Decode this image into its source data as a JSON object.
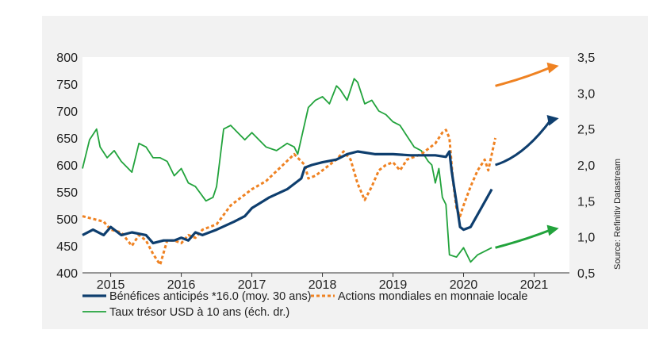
{
  "chart_data": {
    "type": "line",
    "xlim": [
      2014.6,
      2021.5
    ],
    "x_ticks": [
      {
        "label": "2015",
        "x": 2015.0
      },
      {
        "label": "2016",
        "x": 2016.0
      },
      {
        "label": "2017",
        "x": 2017.0
      },
      {
        "label": "2018",
        "x": 2018.0
      },
      {
        "label": "2019",
        "x": 2019.0
      },
      {
        "label": "2020",
        "x": 2020.0
      },
      {
        "label": "2021",
        "x": 2021.0
      }
    ],
    "y_left": {
      "lim": [
        400,
        800
      ],
      "ticks": [
        "800",
        "750",
        "700",
        "650",
        "600",
        "550",
        "500",
        "450",
        "400"
      ],
      "tick_values": [
        800,
        750,
        700,
        650,
        600,
        550,
        500,
        450,
        400
      ]
    },
    "y_right": {
      "lim": [
        0.5,
        3.5
      ],
      "ticks": [
        "3,5",
        "3,0",
        "2,5",
        "2,0",
        "1,5",
        "1,0",
        "0,5"
      ],
      "tick_values": [
        3.5,
        3.0,
        2.5,
        2.0,
        1.5,
        1.0,
        0.5
      ]
    },
    "grid": false,
    "legend_position": "bottom",
    "series": [
      {
        "name": "Bénéfices anticipés *16.0 (moy. 30 ans)",
        "color": "#0e3e6e",
        "line_style": "solid",
        "axis": "left",
        "x": [
          2014.6,
          2014.75,
          2014.9,
          2015.0,
          2015.15,
          2015.3,
          2015.5,
          2015.6,
          2015.75,
          2015.9,
          2016.0,
          2016.1,
          2016.2,
          2016.3,
          2016.5,
          2016.75,
          2016.9,
          2017.0,
          2017.25,
          2017.5,
          2017.7,
          2017.75,
          2017.85,
          2018.0,
          2018.2,
          2018.35,
          2018.5,
          2018.75,
          2019.0,
          2019.25,
          2019.5,
          2019.6,
          2019.75,
          2019.8,
          2019.83,
          2019.87,
          2019.9,
          2019.95,
          2020.0,
          2020.1,
          2020.25,
          2020.4
        ],
        "values": [
          470,
          480,
          470,
          485,
          470,
          475,
          470,
          455,
          460,
          460,
          465,
          460,
          475,
          470,
          480,
          495,
          505,
          520,
          540,
          555,
          575,
          595,
          600,
          605,
          610,
          620,
          625,
          620,
          620,
          618,
          618,
          618,
          615,
          625,
          590,
          555,
          530,
          485,
          480,
          485,
          520,
          555
        ]
      },
      {
        "name": "Actions mondiales en monnaie locale",
        "color": "#ef8222",
        "line_style": "dotted",
        "axis": "left",
        "x": [
          2014.6,
          2014.75,
          2014.9,
          2015.0,
          2015.15,
          2015.3,
          2015.4,
          2015.5,
          2015.6,
          2015.7,
          2015.8,
          2015.9,
          2016.0,
          2016.1,
          2016.2,
          2016.3,
          2016.5,
          2016.7,
          2016.9,
          2017.0,
          2017.2,
          2017.4,
          2017.6,
          2017.75,
          2017.8,
          2017.9,
          2018.0,
          2018.1,
          2018.2,
          2018.3,
          2018.4,
          2018.5,
          2018.6,
          2018.7,
          2018.8,
          2018.9,
          2019.0,
          2019.1,
          2019.2,
          2019.3,
          2019.4,
          2019.5,
          2019.6,
          2019.7,
          2019.75,
          2019.8,
          2019.85,
          2019.9,
          2019.95,
          2020.0,
          2020.1,
          2020.2,
          2020.25,
          2020.3,
          2020.35,
          2020.4,
          2020.45
        ],
        "values": [
          505,
          500,
          495,
          480,
          475,
          450,
          470,
          460,
          435,
          415,
          460,
          460,
          455,
          470,
          465,
          480,
          490,
          525,
          545,
          555,
          570,
          595,
          620,
          600,
          575,
          580,
          590,
          600,
          610,
          625,
          610,
          565,
          535,
          560,
          590,
          600,
          605,
          590,
          610,
          615,
          620,
          630,
          640,
          660,
          665,
          650,
          570,
          520,
          505,
          525,
          560,
          590,
          600,
          610,
          590,
          620,
          650
        ]
      },
      {
        "name": "Taux trésor USD à 10 ans (éch. dr.)",
        "color": "#22a33c",
        "line_style": "solid",
        "axis": "right",
        "x": [
          2014.6,
          2014.7,
          2014.8,
          2014.85,
          2014.95,
          2015.05,
          2015.15,
          2015.3,
          2015.4,
          2015.5,
          2015.6,
          2015.7,
          2015.8,
          2015.9,
          2016.0,
          2016.1,
          2016.2,
          2016.35,
          2016.45,
          2016.5,
          2016.6,
          2016.7,
          2016.8,
          2016.9,
          2017.0,
          2017.1,
          2017.2,
          2017.35,
          2017.5,
          2017.6,
          2017.65,
          2017.8,
          2017.9,
          2018.0,
          2018.1,
          2018.2,
          2018.25,
          2018.35,
          2018.45,
          2018.5,
          2018.6,
          2018.7,
          2018.8,
          2018.9,
          2019.0,
          2019.1,
          2019.2,
          2019.3,
          2019.4,
          2019.5,
          2019.55,
          2019.6,
          2019.65,
          2019.7,
          2019.75,
          2019.8,
          2019.9,
          2020.0,
          2020.1,
          2020.2,
          2020.3,
          2020.4
        ],
        "values": [
          1.95,
          2.35,
          2.5,
          2.25,
          2.1,
          2.2,
          2.05,
          1.9,
          2.3,
          2.25,
          2.1,
          2.1,
          2.05,
          1.85,
          1.95,
          1.75,
          1.7,
          1.5,
          1.55,
          1.7,
          2.5,
          2.55,
          2.45,
          2.35,
          2.45,
          2.35,
          2.25,
          2.2,
          2.3,
          2.25,
          2.15,
          2.8,
          2.9,
          2.95,
          2.85,
          3.1,
          3.05,
          2.9,
          3.2,
          3.15,
          2.85,
          2.9,
          2.75,
          2.7,
          2.6,
          2.55,
          2.4,
          2.25,
          2.2,
          2.05,
          2.0,
          1.75,
          1.95,
          1.55,
          1.45,
          0.75,
          0.72,
          0.85,
          0.65,
          0.75,
          0.8,
          0.85
        ]
      }
    ],
    "annotations": [
      {
        "type": "arrow",
        "color": "#ef8222",
        "from": [
          2020.45,
          3.1
        ],
        "to": [
          2021.35,
          3.38
        ],
        "axis": "right"
      },
      {
        "type": "arrow",
        "color": "#0e3e6e",
        "from": [
          2020.45,
          2.0
        ],
        "to": [
          2021.35,
          2.65
        ],
        "axis": "right"
      },
      {
        "type": "arrow",
        "color": "#22a33c",
        "from": [
          2020.45,
          0.85
        ],
        "to": [
          2021.35,
          1.12
        ],
        "axis": "right"
      }
    ],
    "source": "Source: Refinitiv Datastream"
  }
}
